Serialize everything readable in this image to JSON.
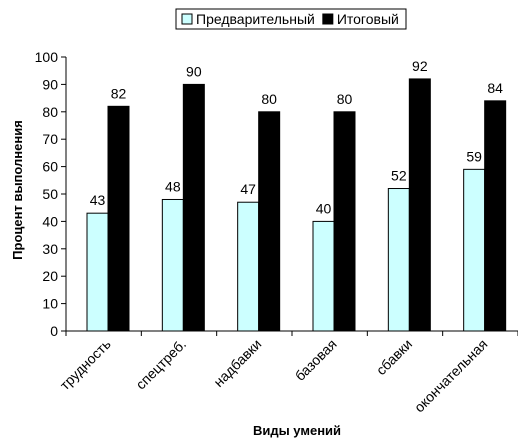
{
  "chart_data": {
    "type": "bar",
    "title": "",
    "xlabel": "Виды умений",
    "ylabel": "Процент выполнения",
    "categories": [
      "трудность",
      "спецтреб.",
      "надбавки",
      "базовая",
      "сбавки",
      "окончательная"
    ],
    "series": [
      {
        "name": "Предварительный",
        "values": [
          43,
          48,
          47,
          40,
          52,
          59
        ],
        "color": "#ccffff"
      },
      {
        "name": "Итоговый",
        "values": [
          82,
          90,
          80,
          80,
          92,
          84
        ],
        "color": "#000000"
      }
    ],
    "ylim": [
      0,
      100
    ],
    "yticks": [
      0,
      10,
      20,
      30,
      40,
      50,
      60,
      70,
      80,
      90,
      100
    ],
    "grid": false,
    "legend": "top-center",
    "data_labels": true
  }
}
